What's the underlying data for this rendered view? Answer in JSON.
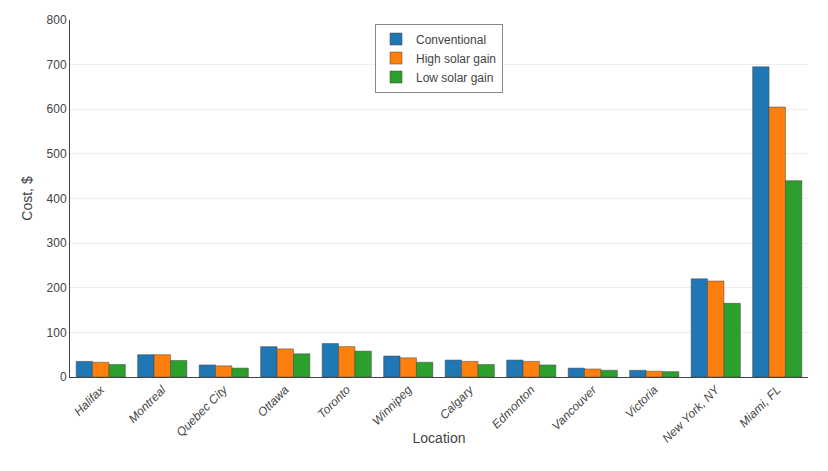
{
  "chart_data": {
    "type": "bar",
    "categories": [
      "Halifax",
      "Montreal",
      "Quebec City",
      "Ottawa",
      "Toronto",
      "Winnipeg",
      "Calgary",
      "Edmonton",
      "Vancouver",
      "Victoria",
      "New York, NY",
      "Miami, FL"
    ],
    "series": [
      {
        "name": "Conventional",
        "values": [
          35,
          50,
          27,
          68,
          75,
          47,
          38,
          38,
          20,
          15,
          220,
          695
        ]
      },
      {
        "name": "High solar gain",
        "values": [
          33,
          50,
          25,
          63,
          68,
          43,
          35,
          35,
          18,
          13,
          215,
          605
        ]
      },
      {
        "name": "Low solar gain",
        "values": [
          28,
          37,
          20,
          52,
          58,
          33,
          28,
          27,
          15,
          12,
          165,
          440
        ]
      }
    ],
    "xlabel": "Location",
    "ylabel": "Cost, $",
    "ylim": [
      0,
      800
    ],
    "yticks": [
      0,
      100,
      200,
      300,
      400,
      500,
      600,
      700,
      800
    ],
    "grid": true,
    "legend": "upper center"
  }
}
